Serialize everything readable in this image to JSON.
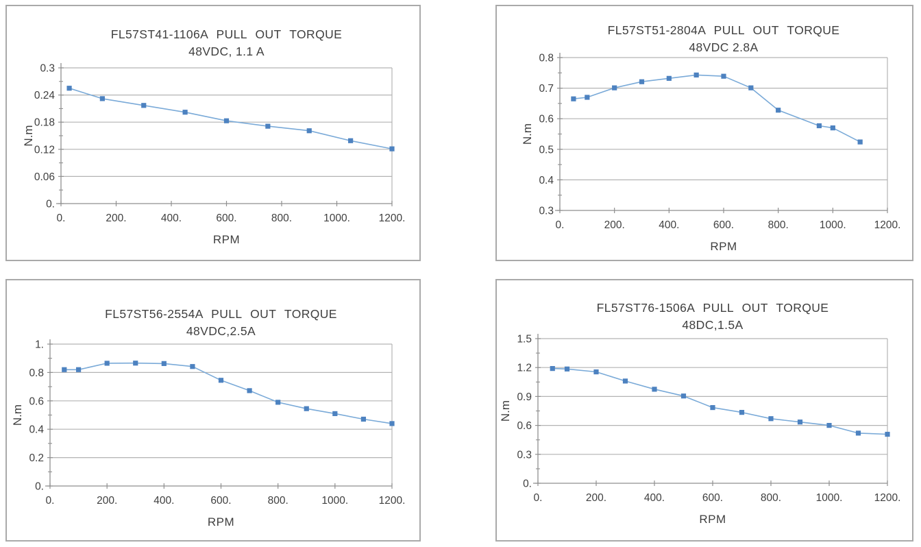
{
  "page": {
    "background": "#ffffff",
    "description": "Four stepper motor pull-out torque curves"
  },
  "style": {
    "marker_color": "#4d82c0",
    "line_color": "#7aaad8",
    "grid_color": "#b3b3b3",
    "axis_color": "#8f8f8f",
    "panel_border_color": "#a9a9a9",
    "text_color": "#3f3f3f"
  },
  "chart_data": [
    {
      "type": "line",
      "title": "FL57ST41-1106A  PULL OUT TORQUE",
      "subtitle": "48VDC, 1.1 A",
      "xlabel": "RPM",
      "ylabel": "N.m",
      "xlim": [
        0,
        1200
      ],
      "ylim": [
        0,
        0.3
      ],
      "grid": "horizontal-major",
      "legend": "none",
      "x_ticks": [
        {
          "v": 0,
          "label": "0."
        },
        {
          "v": 200,
          "label": "200."
        },
        {
          "v": 400,
          "label": "400."
        },
        {
          "v": 600,
          "label": "600."
        },
        {
          "v": 800,
          "label": "800."
        },
        {
          "v": 1000,
          "label": "1000."
        },
        {
          "v": 1200,
          "label": "1200."
        }
      ],
      "y_ticks": [
        {
          "v": 0,
          "label": "0."
        },
        {
          "v": 0.06,
          "label": "0.06"
        },
        {
          "v": 0.12,
          "label": "0.12"
        },
        {
          "v": 0.18,
          "label": "0.18"
        },
        {
          "v": 0.24,
          "label": "0.24"
        },
        {
          "v": 0.3,
          "label": "0.3"
        }
      ],
      "y_minor_step": 0.03,
      "x": [
        30,
        150,
        300,
        450,
        600,
        750,
        900,
        1050,
        1200
      ],
      "y": [
        0.255,
        0.232,
        0.217,
        0.202,
        0.183,
        0.171,
        0.161,
        0.139,
        0.121
      ]
    },
    {
      "type": "line",
      "title": "FL57ST51-2804A  PULL OUT TORQUE",
      "subtitle": "48VDC 2.8A",
      "xlabel": "RPM",
      "ylabel": "N.m",
      "xlim": [
        0,
        1200
      ],
      "ylim": [
        0.3,
        0.8
      ],
      "grid": "horizontal-major",
      "legend": "none",
      "x_ticks": [
        {
          "v": 0,
          "label": "0."
        },
        {
          "v": 200,
          "label": "200."
        },
        {
          "v": 400,
          "label": "400."
        },
        {
          "v": 600,
          "label": "600."
        },
        {
          "v": 800,
          "label": "800."
        },
        {
          "v": 1000,
          "label": "1000."
        },
        {
          "v": 1200,
          "label": "1200."
        }
      ],
      "y_ticks": [
        {
          "v": 0.3,
          "label": "0.3"
        },
        {
          "v": 0.4,
          "label": "0.4"
        },
        {
          "v": 0.5,
          "label": "0.5"
        },
        {
          "v": 0.6,
          "label": "0.6"
        },
        {
          "v": 0.7,
          "label": "0.7"
        },
        {
          "v": 0.8,
          "label": "0.8"
        }
      ],
      "y_minor_step": 0.05,
      "x": [
        50,
        100,
        200,
        300,
        400,
        500,
        600,
        700,
        800,
        950,
        1000,
        1100
      ],
      "y": [
        0.665,
        0.67,
        0.701,
        0.721,
        0.732,
        0.743,
        0.739,
        0.701,
        0.628,
        0.577,
        0.57,
        0.524
      ]
    },
    {
      "type": "line",
      "title": "FL57ST56-2554A  PULL OUT TORQUE",
      "subtitle": "48VDC,2.5A",
      "xlabel": "RPM",
      "ylabel": "N.m",
      "xlim": [
        0,
        1200
      ],
      "ylim": [
        0,
        1
      ],
      "grid": "horizontal-major",
      "legend": "none",
      "x_ticks": [
        {
          "v": 0,
          "label": "0."
        },
        {
          "v": 200,
          "label": "200."
        },
        {
          "v": 400,
          "label": "400."
        },
        {
          "v": 600,
          "label": "600."
        },
        {
          "v": 800,
          "label": "800."
        },
        {
          "v": 1000,
          "label": "1000."
        },
        {
          "v": 1200,
          "label": "1200."
        }
      ],
      "y_ticks": [
        {
          "v": 0,
          "label": "0."
        },
        {
          "v": 0.2,
          "label": "0.2"
        },
        {
          "v": 0.4,
          "label": "0.4"
        },
        {
          "v": 0.6,
          "label": "0.6"
        },
        {
          "v": 0.8,
          "label": "0.8"
        },
        {
          "v": 1,
          "label": "1."
        }
      ],
      "y_minor_step": 0.1,
      "x": [
        50,
        100,
        200,
        300,
        400,
        500,
        600,
        700,
        800,
        900,
        1000,
        1100,
        1200
      ],
      "y": [
        0.82,
        0.82,
        0.865,
        0.866,
        0.863,
        0.842,
        0.745,
        0.672,
        0.59,
        0.545,
        0.51,
        0.471,
        0.44
      ]
    },
    {
      "type": "line",
      "title": "FL57ST76-1506A  PULL OUT TORQUE",
      "subtitle": "48DC,1.5A",
      "xlabel": "RPM",
      "ylabel": "N.m",
      "xlim": [
        0,
        1200
      ],
      "ylim": [
        0,
        1.5
      ],
      "grid": "horizontal-major",
      "legend": "none",
      "x_ticks": [
        {
          "v": 0,
          "label": "0."
        },
        {
          "v": 200,
          "label": "200."
        },
        {
          "v": 400,
          "label": "400."
        },
        {
          "v": 600,
          "label": "600."
        },
        {
          "v": 800,
          "label": "800."
        },
        {
          "v": 1000,
          "label": "1000."
        },
        {
          "v": 1200,
          "label": "1200."
        }
      ],
      "y_ticks": [
        {
          "v": 0,
          "label": "0."
        },
        {
          "v": 0.3,
          "label": "0.3"
        },
        {
          "v": 0.6,
          "label": "0.6"
        },
        {
          "v": 0.9,
          "label": "0.9"
        },
        {
          "v": 1.2,
          "label": "1.2"
        },
        {
          "v": 1.5,
          "label": "1.5"
        }
      ],
      "y_minor_step": 0.15,
      "x": [
        50,
        100,
        200,
        300,
        400,
        500,
        600,
        700,
        800,
        900,
        1000,
        1100,
        1200
      ],
      "y": [
        1.19,
        1.185,
        1.155,
        1.06,
        0.975,
        0.905,
        0.785,
        0.735,
        0.67,
        0.635,
        0.6,
        0.52,
        0.508
      ]
    }
  ]
}
